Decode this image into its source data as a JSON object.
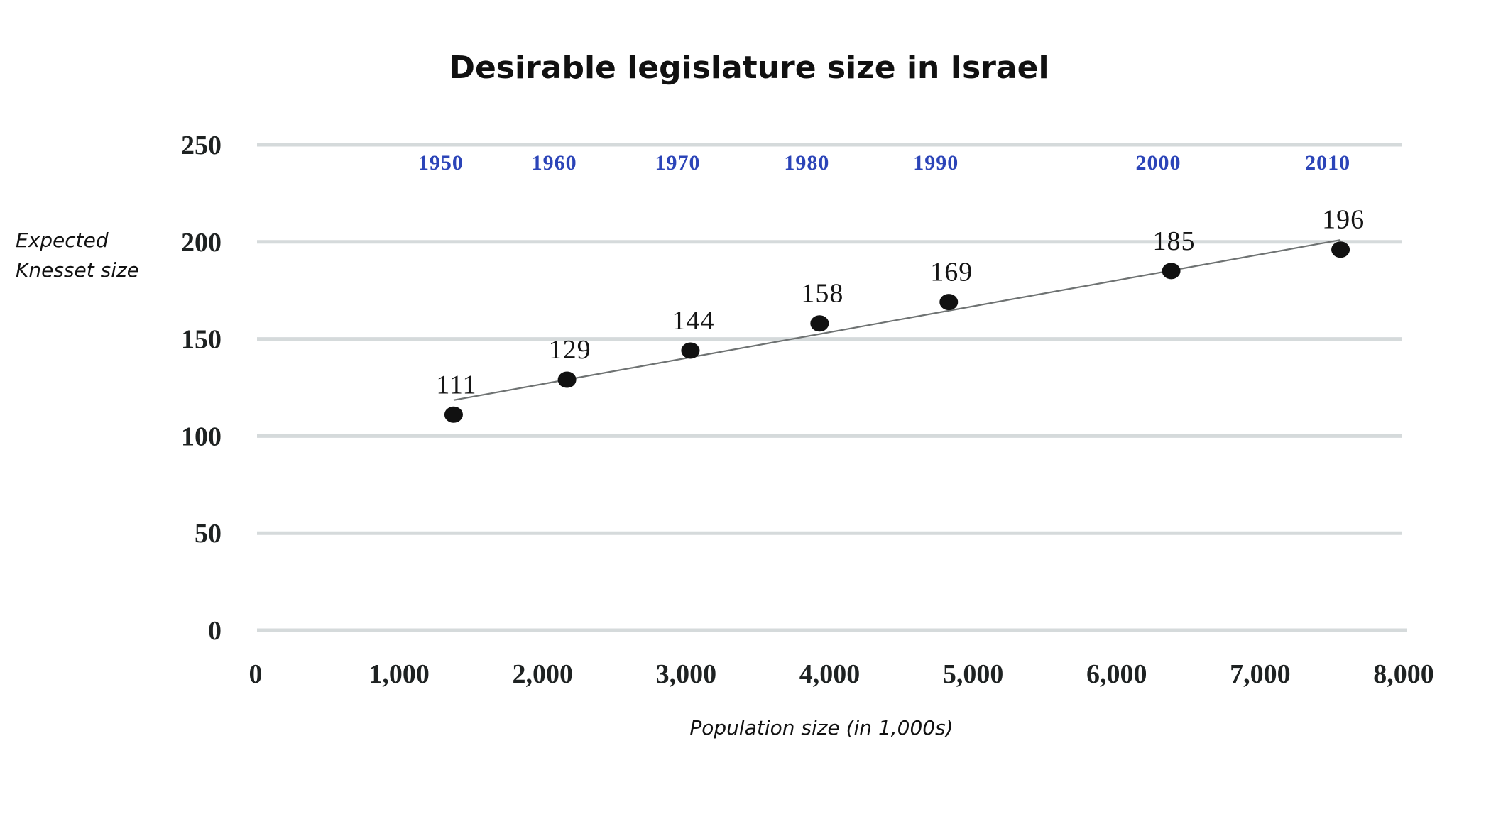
{
  "chart_data": {
    "type": "scatter",
    "title": "Desirable legislature size in Israel",
    "xlabel": "Population size (in 1,000s)",
    "ylabel": [
      "Expected",
      "Knesset size"
    ],
    "xlim": [
      0,
      8000
    ],
    "ylim": [
      0,
      250
    ],
    "x_ticks": [
      0,
      1000,
      2000,
      3000,
      4000,
      5000,
      6000,
      7000,
      8000
    ],
    "x_tick_labels": [
      "0",
      "1,000",
      "2,000",
      "3,000",
      "4,000",
      "5,000",
      "6,000",
      "7,000",
      "8,000"
    ],
    "y_ticks": [
      0,
      50,
      100,
      150,
      200,
      250
    ],
    "y_tick_labels": [
      "0",
      "50",
      "100",
      "150",
      "200",
      "250"
    ],
    "grid": "horizontal",
    "series": [
      {
        "name": "Expected Knesset size",
        "points": [
          {
            "year": "1950",
            "x": 1380,
            "y": 111,
            "label": "111"
          },
          {
            "year": "1960",
            "x": 2170,
            "y": 129,
            "label": "129"
          },
          {
            "year": "1970",
            "x": 3030,
            "y": 144,
            "label": "144"
          },
          {
            "year": "1980",
            "x": 3930,
            "y": 158,
            "label": "158"
          },
          {
            "year": "1990",
            "x": 4830,
            "y": 169,
            "label": "169"
          },
          {
            "year": "2000",
            "x": 6380,
            "y": 185,
            "label": "185"
          },
          {
            "year": "2010",
            "x": 7560,
            "y": 196,
            "label": "196"
          }
        ]
      }
    ],
    "trendline": {
      "type": "linear",
      "from": {
        "x": 1380,
        "y": 118.5
      },
      "to": {
        "x": 7560,
        "y": 201
      }
    },
    "colors": {
      "year_labels": "#2b44b8",
      "points": "#111111",
      "grid": "#d5dadb",
      "trendline": "#6e7272"
    }
  }
}
